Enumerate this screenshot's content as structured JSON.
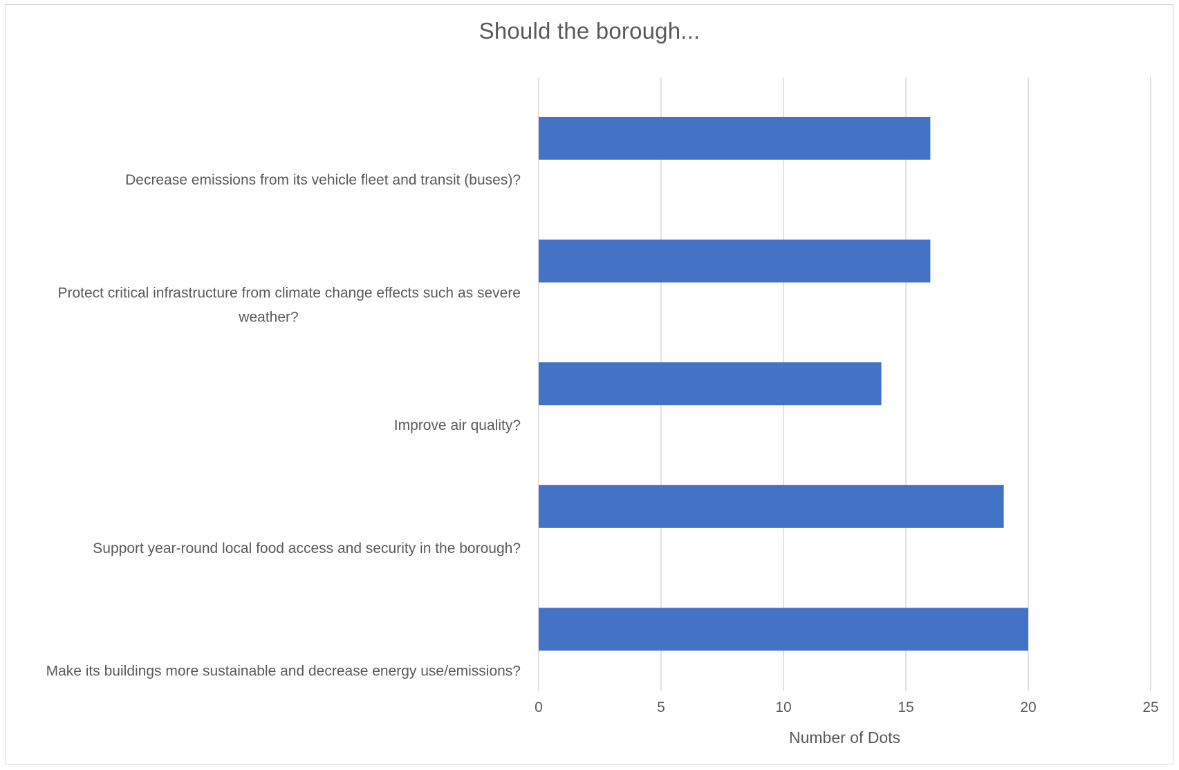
{
  "chart_data": {
    "type": "bar",
    "orientation": "horizontal",
    "title": "Should the borough...",
    "xlabel": "Number of Dots",
    "ylabel": "",
    "categories": [
      [
        "Decrease emissions from its vehicle fleet and transit (buses)?"
      ],
      [
        "Protect critical infrastructure from climate change effects such as severe",
        "weather?"
      ],
      [
        "Improve air quality?"
      ],
      [
        "Support year-round local food access and security in the borough?"
      ],
      [
        "Make its buildings more sustainable and decrease energy use/emissions?"
      ]
    ],
    "values": [
      16,
      16,
      14,
      19,
      20
    ],
    "xlim": [
      0,
      25
    ],
    "xticks": [
      "0",
      "5",
      "10",
      "15",
      "20",
      "25"
    ],
    "grid": "vertical",
    "legend": "none",
    "bar_color": "#4472c4",
    "grid_color": "#d9d9d9"
  }
}
